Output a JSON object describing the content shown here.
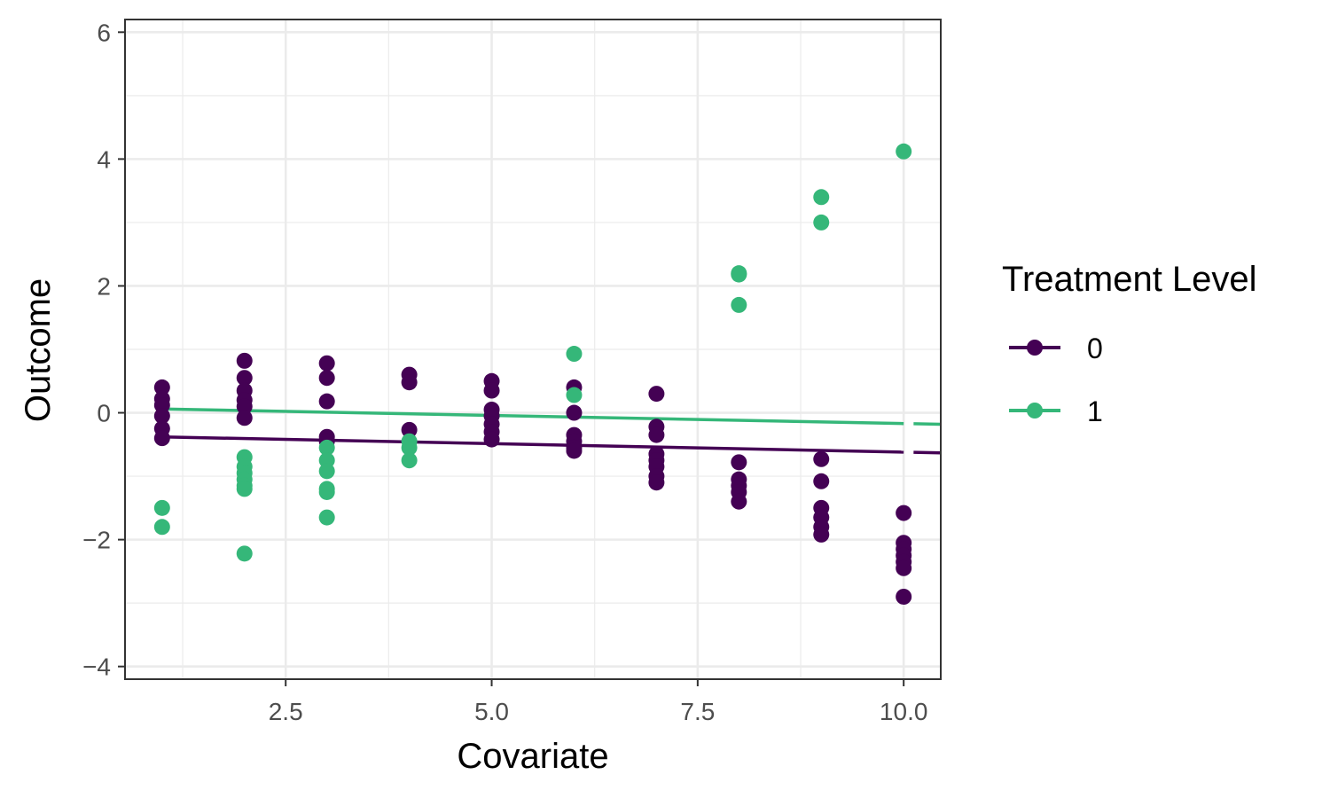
{
  "chart_data": {
    "type": "scatter",
    "xlabel": "Covariate",
    "ylabel": "Outcome",
    "xlim": [
      0.55,
      10.45
    ],
    "ylim": [
      -4.2,
      6.2
    ],
    "x_ticks": [
      2.5,
      5.0,
      7.5,
      10.0
    ],
    "x_tick_labels": [
      "2.5",
      "5.0",
      "7.5",
      "10.0"
    ],
    "y_ticks": [
      -4,
      -2,
      0,
      2,
      4,
      6
    ],
    "y_tick_labels": [
      "−4",
      "−2",
      "0",
      "2",
      "4",
      "6"
    ],
    "grid": true,
    "legend": {
      "title": "Treatment Level",
      "position": "right",
      "entries": [
        "0",
        "1"
      ]
    },
    "series": [
      {
        "name": "0",
        "color": "#440154",
        "points": [
          [
            1,
            0.4
          ],
          [
            1,
            0.22
          ],
          [
            1,
            0.12
          ],
          [
            1,
            -0.05
          ],
          [
            1,
            -0.25
          ],
          [
            1,
            -0.4
          ],
          [
            2,
            0.82
          ],
          [
            2,
            0.55
          ],
          [
            2,
            0.35
          ],
          [
            2,
            0.2
          ],
          [
            2,
            0.1
          ],
          [
            2,
            -0.08
          ],
          [
            3,
            0.78
          ],
          [
            3,
            0.55
          ],
          [
            3,
            0.18
          ],
          [
            3,
            -0.38
          ],
          [
            3,
            -0.45
          ],
          [
            4,
            0.6
          ],
          [
            4,
            0.48
          ],
          [
            4,
            -0.27
          ],
          [
            5,
            0.5
          ],
          [
            5,
            0.35
          ],
          [
            5,
            0.05
          ],
          [
            5,
            -0.05
          ],
          [
            5,
            -0.18
          ],
          [
            5,
            -0.3
          ],
          [
            5,
            -0.42
          ],
          [
            6,
            0.4
          ],
          [
            6,
            0.0
          ],
          [
            6,
            -0.35
          ],
          [
            6,
            -0.45
          ],
          [
            6,
            -0.55
          ],
          [
            6,
            -0.6
          ],
          [
            7,
            0.3
          ],
          [
            7,
            -0.22
          ],
          [
            7,
            -0.35
          ],
          [
            7,
            -0.65
          ],
          [
            7,
            -0.75
          ],
          [
            7,
            -0.85
          ],
          [
            7,
            -1.0
          ],
          [
            7,
            -1.1
          ],
          [
            8,
            -0.78
          ],
          [
            8,
            -1.05
          ],
          [
            8,
            -1.15
          ],
          [
            8,
            -1.25
          ],
          [
            8,
            -1.4
          ],
          [
            9,
            -0.73
          ],
          [
            9,
            -1.08
          ],
          [
            9,
            -1.5
          ],
          [
            9,
            -1.65
          ],
          [
            9,
            -1.8
          ],
          [
            9,
            -1.92
          ],
          [
            10,
            -1.58
          ],
          [
            10,
            -2.05
          ],
          [
            10,
            -2.15
          ],
          [
            10,
            -2.25
          ],
          [
            10,
            -2.35
          ],
          [
            10,
            -2.45
          ],
          [
            10,
            -2.9
          ]
        ],
        "trend": {
          "x": [
            1,
            10
          ],
          "y": [
            -0.38,
            -0.62
          ]
        }
      },
      {
        "name": "1",
        "color": "#35b779",
        "points": [
          [
            1,
            -1.5
          ],
          [
            1,
            -1.8
          ],
          [
            2,
            -0.7
          ],
          [
            2,
            -0.85
          ],
          [
            2,
            -0.95
          ],
          [
            2,
            -1.05
          ],
          [
            2,
            -1.15
          ],
          [
            2,
            -1.2
          ],
          [
            2,
            -2.22
          ],
          [
            3,
            -0.55
          ],
          [
            3,
            -0.75
          ],
          [
            3,
            -0.92
          ],
          [
            3,
            -1.2
          ],
          [
            3,
            -1.25
          ],
          [
            3,
            -1.65
          ],
          [
            4,
            -0.45
          ],
          [
            4,
            -0.55
          ],
          [
            4,
            -0.75
          ],
          [
            6,
            0.93
          ],
          [
            6,
            0.28
          ],
          [
            8,
            2.2
          ],
          [
            8,
            2.18
          ],
          [
            8,
            1.7
          ],
          [
            9,
            3.4
          ],
          [
            9,
            3.0
          ],
          [
            10,
            4.12
          ]
        ],
        "trend": {
          "x": [
            1,
            10
          ],
          "y": [
            0.06,
            -0.17
          ]
        }
      }
    ]
  }
}
